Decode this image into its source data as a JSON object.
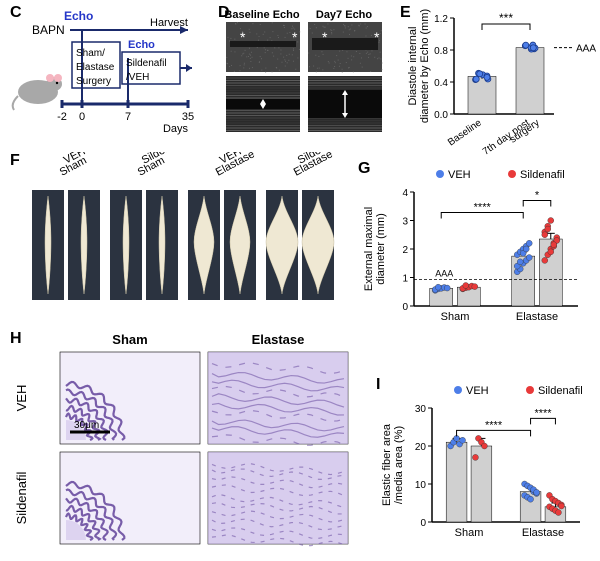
{
  "panelC": {
    "label": "C",
    "timeline": {
      "echo_label": "Echo",
      "bapn": "BAPN",
      "harvest": "Harvest",
      "box1": [
        "Sham/",
        "Elastase",
        "Surgery"
      ],
      "box2_label": "Echo",
      "box2": [
        "Sildenafil",
        "/VEH"
      ],
      "days_label": "Days",
      "ticks": [
        "-2",
        "0",
        "7",
        "35"
      ]
    },
    "colors": {
      "line": "#1a2a6b",
      "echo": "#2436c8",
      "text": "#000000",
      "mouse_body": "#a8a8a8",
      "mouse_ear": "#f5b5c0"
    }
  },
  "panelD": {
    "label": "D",
    "titles": [
      "Baseline Echo",
      "Day7 Echo"
    ],
    "echo_bg": "#444444",
    "band_color": "#bfbfbf"
  },
  "panelE": {
    "label": "E",
    "type": "bar",
    "title_lines": [
      "Diastole internal",
      "diameter by Echo (mm)"
    ],
    "categories": [
      "Baseline",
      "7th day post\nsurgery"
    ],
    "values": [
      0.47,
      0.83
    ],
    "errors": [
      0.03,
      0.03
    ],
    "bar_color": "#d0d0d0",
    "point_color": "#4d7ee8",
    "ylim": [
      0,
      1.2
    ],
    "ytick_step": 0.4,
    "sig": "***",
    "note": "AAA",
    "label_fontsize": 11
  },
  "panelF": {
    "label": "F",
    "groups": [
      "Sham\nVEH",
      "Sham\nSildenafil",
      "Elastase\nVEH",
      "Elastase\nSildenafil"
    ],
    "bg_color": "#2b3340",
    "sample_color": "#e8e0c8",
    "sample_bulge_color": "#efe8d3"
  },
  "panelG": {
    "label": "G",
    "type": "scatter_bar",
    "legend": [
      {
        "label": "VEH",
        "color": "#4d7ee8"
      },
      {
        "label": "Sildenafil",
        "color": "#e83a3a"
      }
    ],
    "ylabel": [
      "External maximal",
      "diameter (mm)"
    ],
    "xgroups": [
      "Sham",
      "Elastase"
    ],
    "bars": [
      {
        "group": "Sham",
        "series": "VEH",
        "mean": 0.62,
        "err": 0.04,
        "points": [
          0.55,
          0.6,
          0.62,
          0.65,
          0.63,
          0.58,
          0.66
        ]
      },
      {
        "group": "Sham",
        "series": "Sildenafil",
        "mean": 0.66,
        "err": 0.04,
        "points": [
          0.6,
          0.64,
          0.66,
          0.7,
          0.68,
          0.62,
          0.72
        ]
      },
      {
        "group": "Elastase",
        "series": "VEH",
        "mean": 1.75,
        "err": 0.15,
        "points": [
          1.2,
          1.3,
          1.5,
          1.6,
          1.7,
          1.8,
          1.9,
          2.0,
          2.1,
          2.2,
          1.4,
          1.55,
          1.85,
          2.0
        ]
      },
      {
        "group": "Elastase",
        "series": "Sildenafil",
        "mean": 2.35,
        "err": 0.2,
        "points": [
          1.6,
          1.8,
          2.0,
          2.2,
          2.4,
          2.6,
          2.8,
          3.0,
          2.1,
          2.3,
          2.5,
          2.7,
          1.9,
          2.15
        ]
      }
    ],
    "ylim": [
      0,
      4
    ],
    "ytick_step": 1,
    "bar_color": "#d0d0d0",
    "sig": [
      {
        "from": 0,
        "to": 2,
        "label": "****"
      },
      {
        "from": 2,
        "to": 3,
        "label": "*"
      }
    ],
    "note": "AAA"
  },
  "panelH": {
    "label": "H",
    "col_labels": [
      "Sham",
      "Elastase"
    ],
    "row_labels": [
      "VEH",
      "Sildenafil"
    ],
    "scale": "30μm",
    "stain_color": "#6a4da0",
    "stain_light": "#c7b8e6",
    "bg_color": "#f2eefa"
  },
  "panelI": {
    "label": "I",
    "type": "scatter_bar",
    "legend": [
      {
        "label": "VEH",
        "color": "#4d7ee8"
      },
      {
        "label": "Sildenafil",
        "color": "#e83a3a"
      }
    ],
    "ylabel": [
      "Elastic fiber area",
      "/media area (%)"
    ],
    "xgroups": [
      "Sham",
      "Elastase"
    ],
    "bars": [
      {
        "group": "Sham",
        "series": "VEH",
        "mean": 21,
        "err": 1,
        "points": [
          20,
          21,
          22,
          20.5,
          21.5
        ]
      },
      {
        "group": "Sham",
        "series": "Sildenafil",
        "mean": 20,
        "err": 2,
        "points": [
          17,
          22,
          21,
          20
        ]
      },
      {
        "group": "Elastase",
        "series": "VEH",
        "mean": 8,
        "err": 1,
        "points": [
          10,
          9.5,
          9,
          8,
          7.5,
          7,
          6.5,
          6,
          8.5,
          7.8
        ]
      },
      {
        "group": "Elastase",
        "series": "Sildenafil",
        "mean": 4,
        "err": 1,
        "points": [
          7,
          6,
          5.5,
          5,
          4.5,
          4,
          3.5,
          3,
          2.5,
          4.2
        ]
      }
    ],
    "ylim": [
      0,
      30
    ],
    "ytick_step": 10,
    "bar_color": "#d0d0d0",
    "sig": [
      {
        "from": 0,
        "to": 2,
        "label": "****"
      },
      {
        "from": 2,
        "to": 3,
        "label": "****"
      }
    ]
  }
}
